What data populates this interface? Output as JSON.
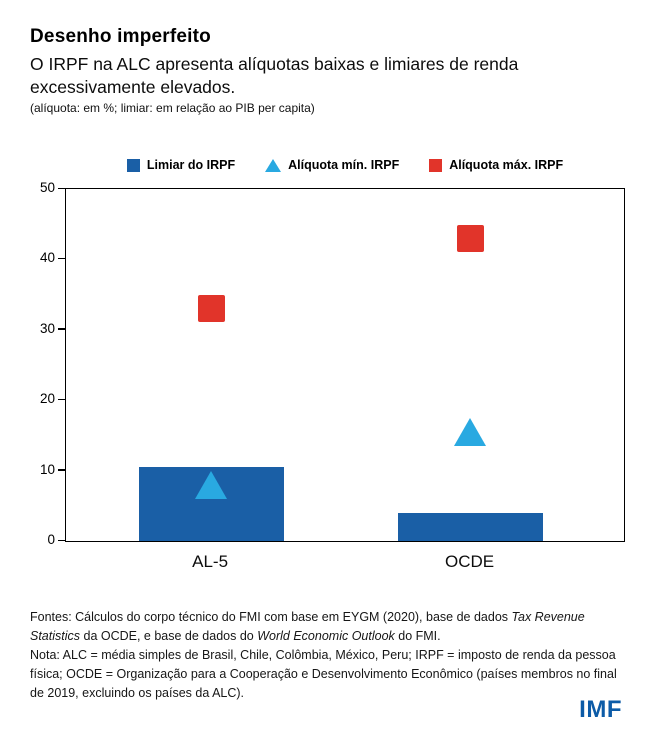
{
  "header": {
    "title": "Desenho imperfeito",
    "subtitle": "O IRPF na ALC apresenta alíquotas baixas e limiares de renda excessivamente elevados.",
    "caption": "(alíquota: em %; limiar: em relação ao PIB per capita)"
  },
  "chart_data": {
    "type": "bar",
    "title": "Desenho imperfeito",
    "categories": [
      "AL-5",
      "OCDE"
    ],
    "series": [
      {
        "name": "Limiar do IRPF",
        "kind": "bar",
        "marker": "square",
        "color": "#1A5FA6",
        "values": [
          10.5,
          4
        ]
      },
      {
        "name": "Alíquota mín. IRPF",
        "kind": "point",
        "marker": "triangle",
        "color": "#29A9E1",
        "values": [
          8,
          15.5
        ]
      },
      {
        "name": "Alíquota máx. IRPF",
        "kind": "point",
        "marker": "square",
        "color": "#E1342A",
        "values": [
          33,
          43
        ]
      }
    ],
    "xlabel": "",
    "ylabel": "",
    "ylim": [
      0,
      50
    ],
    "yticks": [
      0,
      10,
      20,
      30,
      40,
      50
    ],
    "grid": false,
    "legend_position": "top",
    "layout": {
      "bar_width_pct": 0.26,
      "centers_pct": [
        0.26,
        0.725
      ],
      "triangle_w": 33,
      "triangle_h": 28,
      "square_size": 27
    }
  },
  "footer": {
    "fontes_parts": [
      {
        "text": "Fontes: Cálculos do corpo técnico do FMI com base em EYGM (2020), base de dados ",
        "italic": false
      },
      {
        "text": "Tax Revenue Statistics",
        "italic": true
      },
      {
        "text": " da OCDE, e base de dados do ",
        "italic": false
      },
      {
        "text": "World Economic Outlook",
        "italic": true
      },
      {
        "text": " do FMI.",
        "italic": false
      }
    ],
    "nota": "Nota: ALC = média simples de Brasil, Chile, Colômbia, México, Peru; IRPF = imposto de renda da pessoa física; OCDE = Organização para a Cooperação e Desenvolvimento Econômico (países membros no final de 2019, excluindo os países da ALC).",
    "logo": "IMF",
    "logo_color": "#0C5BA7"
  }
}
